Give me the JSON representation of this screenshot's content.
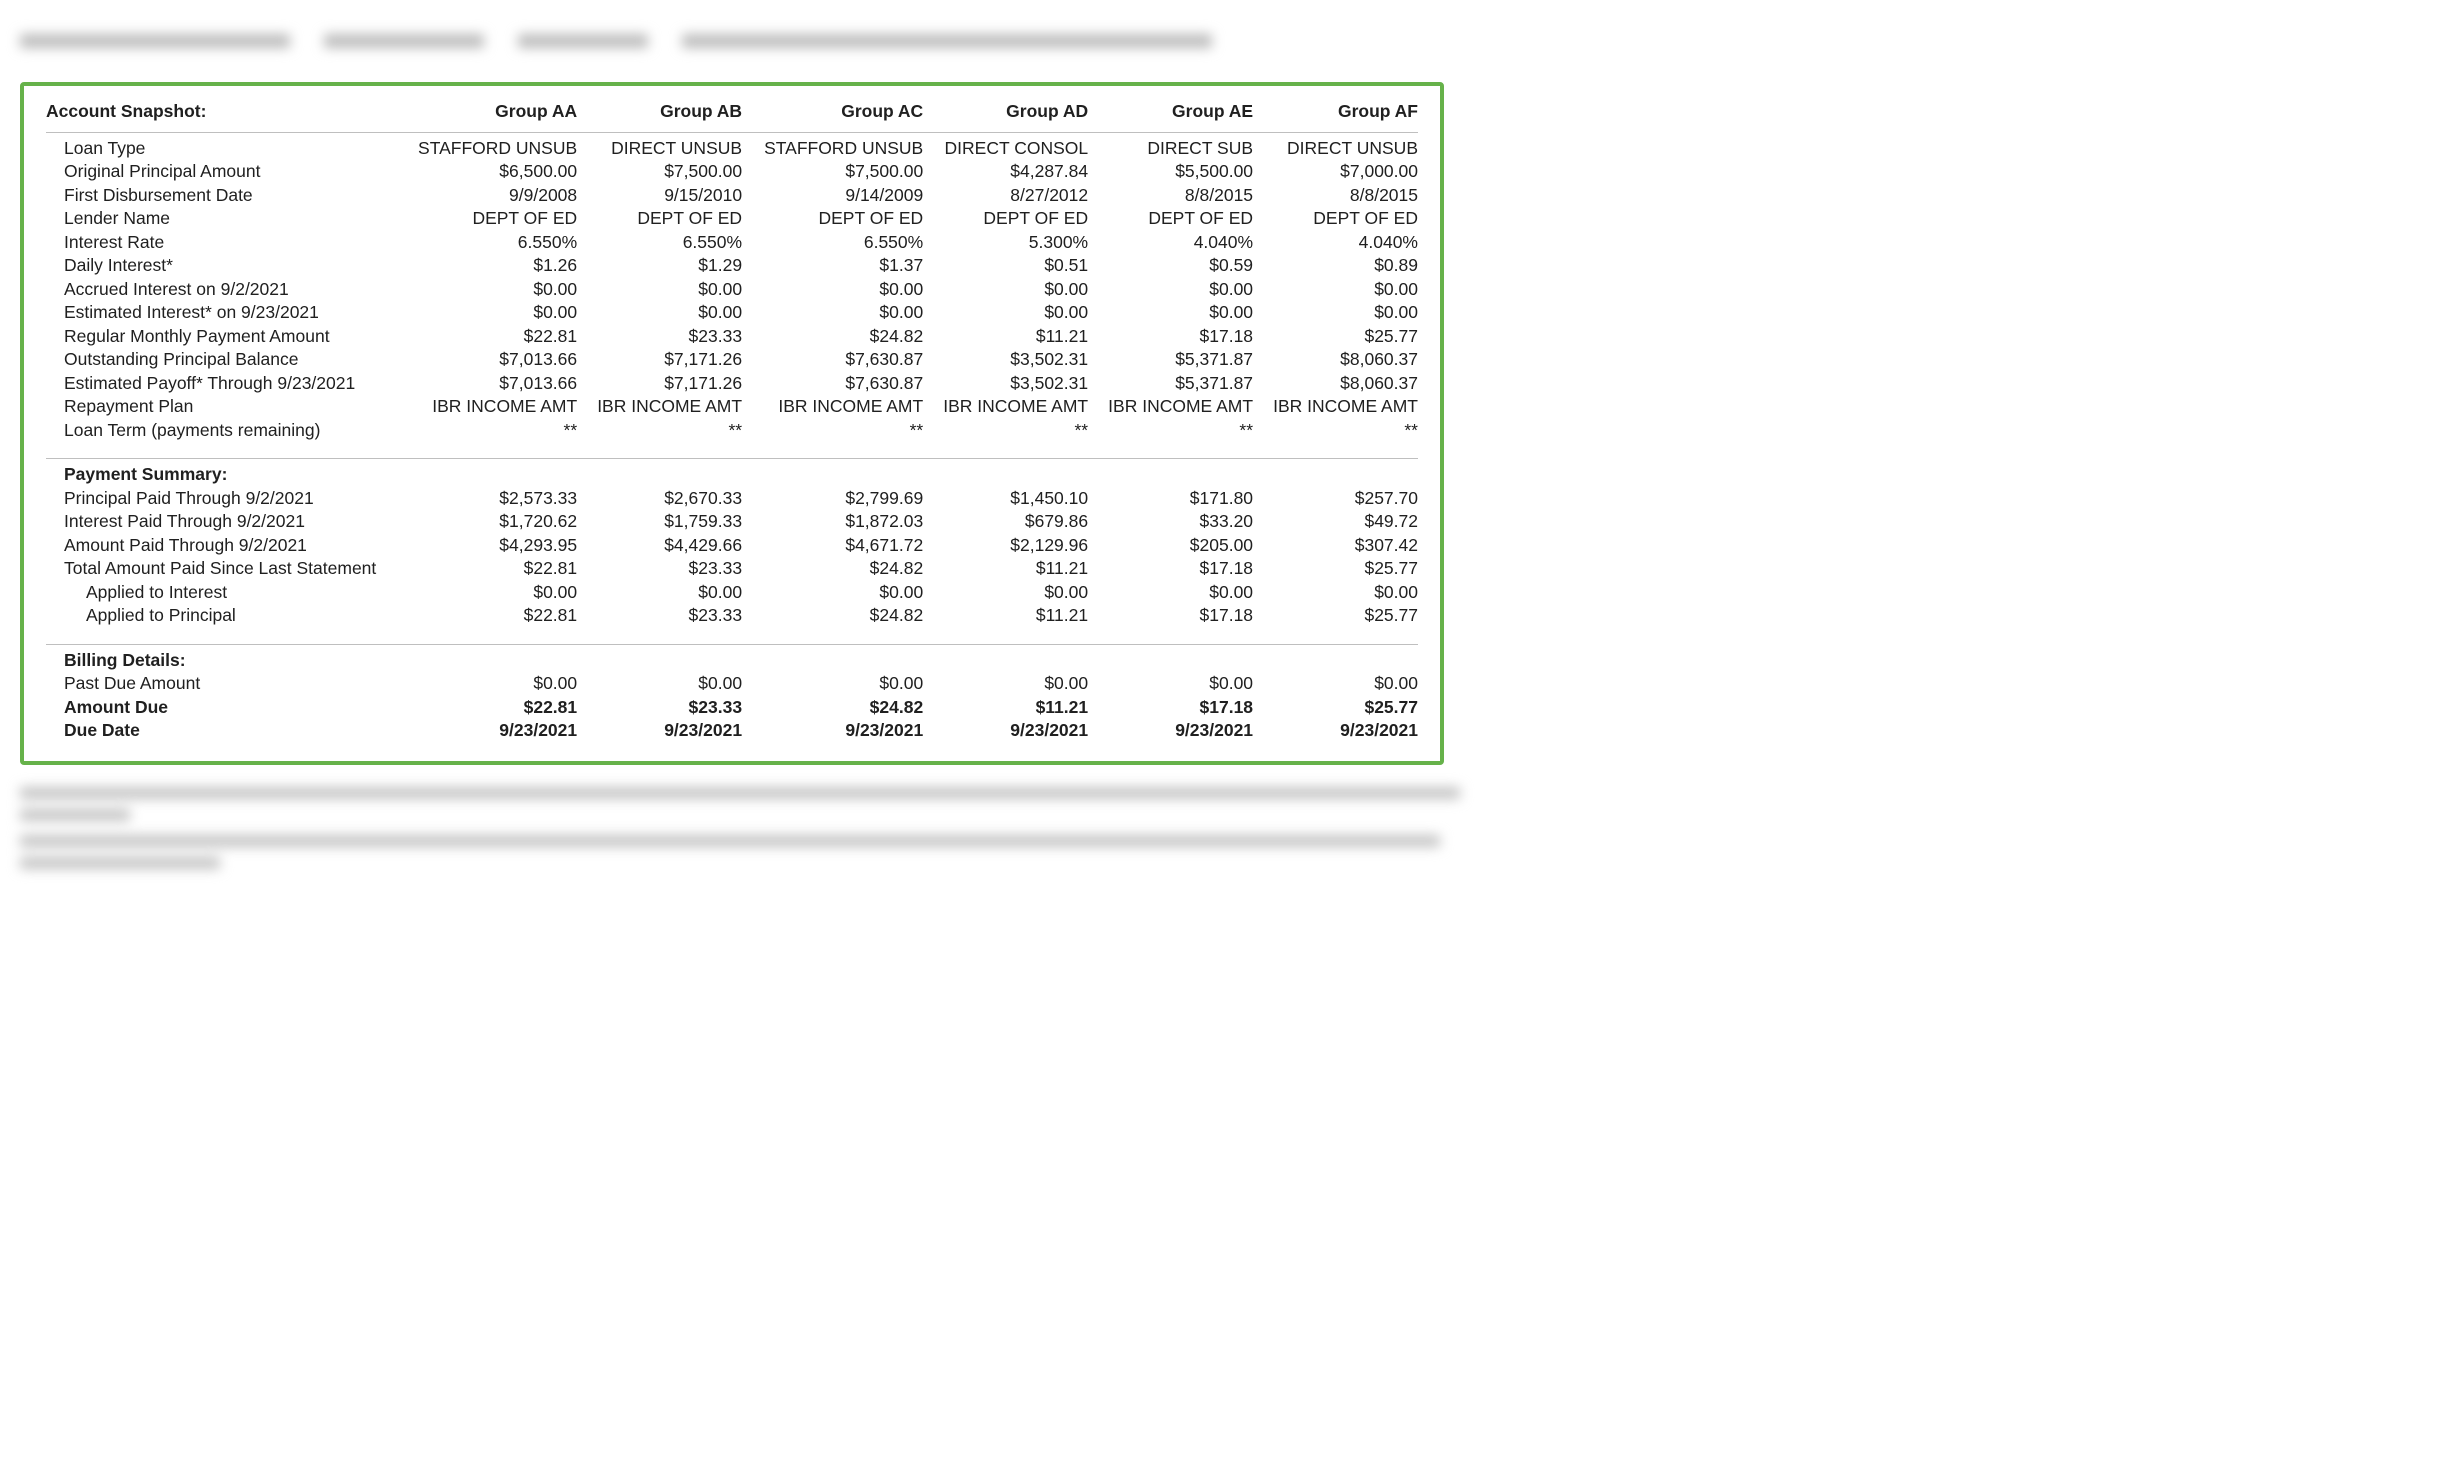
{
  "panel_border_color": "#66b24a",
  "text_color": "#202020",
  "background_color": "#ffffff",
  "font_family": "Segoe UI / Helvetica Neue / Arial",
  "header": {
    "title": "Account Snapshot:",
    "groups": [
      "Group AA",
      "Group AB",
      "Group AC",
      "Group AD",
      "Group AE",
      "Group AF"
    ]
  },
  "blur_top_widths": [
    270,
    160,
    130,
    530
  ],
  "blur_bottom_widths": [
    [
      1440,
      110
    ],
    [
      1420,
      200
    ]
  ],
  "snapshot_rows": [
    {
      "label": "Loan Type",
      "vals": [
        "STAFFORD UNSUB",
        "DIRECT UNSUB",
        "STAFFORD UNSUB",
        "DIRECT CONSOL",
        "DIRECT SUB",
        "DIRECT UNSUB"
      ]
    },
    {
      "label": "Original Principal Amount",
      "vals": [
        "$6,500.00",
        "$7,500.00",
        "$7,500.00",
        "$4,287.84",
        "$5,500.00",
        "$7,000.00"
      ]
    },
    {
      "label": "First Disbursement Date",
      "vals": [
        "9/9/2008",
        "9/15/2010",
        "9/14/2009",
        "8/27/2012",
        "8/8/2015",
        "8/8/2015"
      ]
    },
    {
      "label": "Lender Name",
      "vals": [
        "DEPT OF ED",
        "DEPT OF ED",
        "DEPT OF ED",
        "DEPT OF ED",
        "DEPT OF ED",
        "DEPT OF ED"
      ]
    },
    {
      "label": "Interest Rate",
      "vals": [
        "6.550%",
        "6.550%",
        "6.550%",
        "5.300%",
        "4.040%",
        "4.040%"
      ]
    },
    {
      "label": "Daily Interest*",
      "vals": [
        "$1.26",
        "$1.29",
        "$1.37",
        "$0.51",
        "$0.59",
        "$0.89"
      ]
    },
    {
      "label": "Accrued Interest on 9/2/2021",
      "vals": [
        "$0.00",
        "$0.00",
        "$0.00",
        "$0.00",
        "$0.00",
        "$0.00"
      ]
    },
    {
      "label": "Estimated Interest* on 9/23/2021",
      "vals": [
        "$0.00",
        "$0.00",
        "$0.00",
        "$0.00",
        "$0.00",
        "$0.00"
      ]
    },
    {
      "label": "Regular Monthly Payment Amount",
      "vals": [
        "$22.81",
        "$23.33",
        "$24.82",
        "$11.21",
        "$17.18",
        "$25.77"
      ]
    },
    {
      "label": "Outstanding Principal Balance",
      "vals": [
        "$7,013.66",
        "$7,171.26",
        "$7,630.87",
        "$3,502.31",
        "$5,371.87",
        "$8,060.37"
      ]
    },
    {
      "label": "Estimated Payoff* Through 9/23/2021",
      "vals": [
        "$7,013.66",
        "$7,171.26",
        "$7,630.87",
        "$3,502.31",
        "$5,371.87",
        "$8,060.37"
      ]
    },
    {
      "label": "Repayment Plan",
      "vals": [
        "IBR INCOME AMT",
        "IBR INCOME AMT",
        "IBR INCOME AMT",
        "IBR INCOME AMT",
        "IBR INCOME AMT",
        "IBR INCOME AMT"
      ]
    },
    {
      "label": "Loan Term (payments remaining)",
      "vals": [
        "**",
        "**",
        "**",
        "**",
        "**",
        "**"
      ]
    }
  ],
  "payment_summary_title": "Payment Summary:",
  "payment_rows": [
    {
      "label": "Principal Paid Through 9/2/2021",
      "vals": [
        "$2,573.33",
        "$2,670.33",
        "$2,799.69",
        "$1,450.10",
        "$171.80",
        "$257.70"
      ]
    },
    {
      "label": "Interest Paid Through 9/2/2021",
      "vals": [
        "$1,720.62",
        "$1,759.33",
        "$1,872.03",
        "$679.86",
        "$33.20",
        "$49.72"
      ]
    },
    {
      "label": "Amount Paid Through 9/2/2021",
      "vals": [
        "$4,293.95",
        "$4,429.66",
        "$4,671.72",
        "$2,129.96",
        "$205.00",
        "$307.42"
      ]
    },
    {
      "label": "Total Amount Paid Since Last Statement",
      "vals": [
        "$22.81",
        "$23.33",
        "$24.82",
        "$11.21",
        "$17.18",
        "$25.77"
      ]
    },
    {
      "label": "Applied to Interest",
      "indent": true,
      "vals": [
        "$0.00",
        "$0.00",
        "$0.00",
        "$0.00",
        "$0.00",
        "$0.00"
      ]
    },
    {
      "label": "Applied to Principal",
      "indent": true,
      "vals": [
        "$22.81",
        "$23.33",
        "$24.82",
        "$11.21",
        "$17.18",
        "$25.77"
      ]
    }
  ],
  "billing_title": "Billing Details:",
  "billing_rows": [
    {
      "label": "Past Due Amount",
      "bold": false,
      "vals": [
        "$0.00",
        "$0.00",
        "$0.00",
        "$0.00",
        "$0.00",
        "$0.00"
      ]
    },
    {
      "label": "Amount Due",
      "bold": true,
      "vals": [
        "$22.81",
        "$23.33",
        "$24.82",
        "$11.21",
        "$17.18",
        "$25.77"
      ]
    },
    {
      "label": "Due Date",
      "bold": true,
      "vals": [
        "9/23/2021",
        "9/23/2021",
        "9/23/2021",
        "9/23/2021",
        "9/23/2021",
        "9/23/2021"
      ]
    }
  ]
}
